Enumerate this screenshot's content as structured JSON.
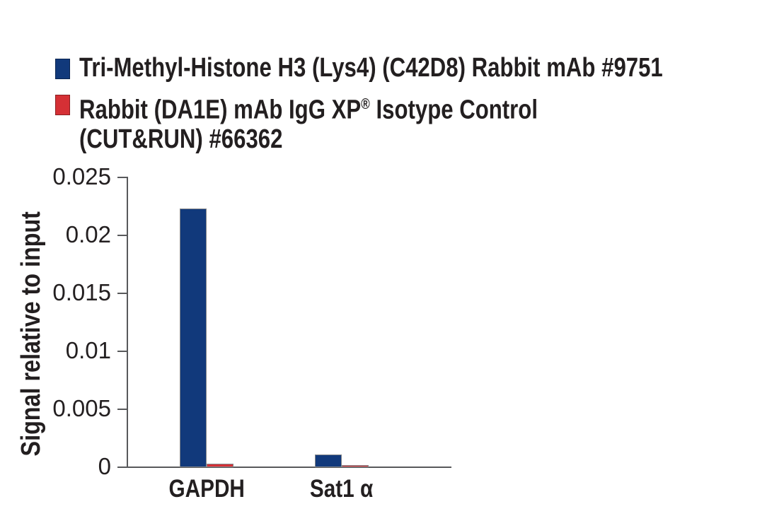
{
  "legend": {
    "items": [
      {
        "color": "#11397B",
        "swatch_name": "legend-swatch-blue",
        "lines": [
          [
            {
              "t": "Tri-Methyl-Histone H3 (Lys4) (C42D8) Rabbit mAb #9751"
            }
          ]
        ]
      },
      {
        "color": "#D53035",
        "swatch_name": "legend-swatch-red",
        "lines": [
          [
            {
              "t": "Rabbit (DA1E) mAb IgG XP"
            },
            {
              "t": "®",
              "sup": true
            },
            {
              "t": " Isotype Control"
            }
          ],
          [
            {
              "t": "(CUT&RUN) #66362"
            }
          ]
        ]
      }
    ]
  },
  "chart_data": {
    "type": "bar",
    "title": "",
    "xlabel": "",
    "ylabel": "Signal relative to input",
    "categories": [
      "GAPDH",
      "Sat1 α"
    ],
    "series": [
      {
        "name": "Tri-Methyl-Histone H3 (Lys4) (C42D8) Rabbit mAb #9751",
        "color": "#11397B",
        "values": [
          0.0223,
          0.0011
        ]
      },
      {
        "name": "Rabbit (DA1E) mAb IgG XP® Isotype Control (CUT&RUN) #66362",
        "color": "#D53035",
        "values": [
          0.0003,
          0.0002
        ]
      }
    ],
    "ylim": [
      0,
      0.025
    ],
    "yticks": [
      0,
      0.005,
      0.01,
      0.015,
      0.02,
      0.025
    ],
    "ytick_labels": [
      "0",
      "0.005",
      "0.01",
      "0.015",
      "0.02",
      "0.025"
    ],
    "grid": false,
    "legend_position": "top-left"
  },
  "colors": {
    "axis": "#58595B",
    "text": "#231F20",
    "bar_border": "#85878A",
    "background": "#ffffff"
  }
}
